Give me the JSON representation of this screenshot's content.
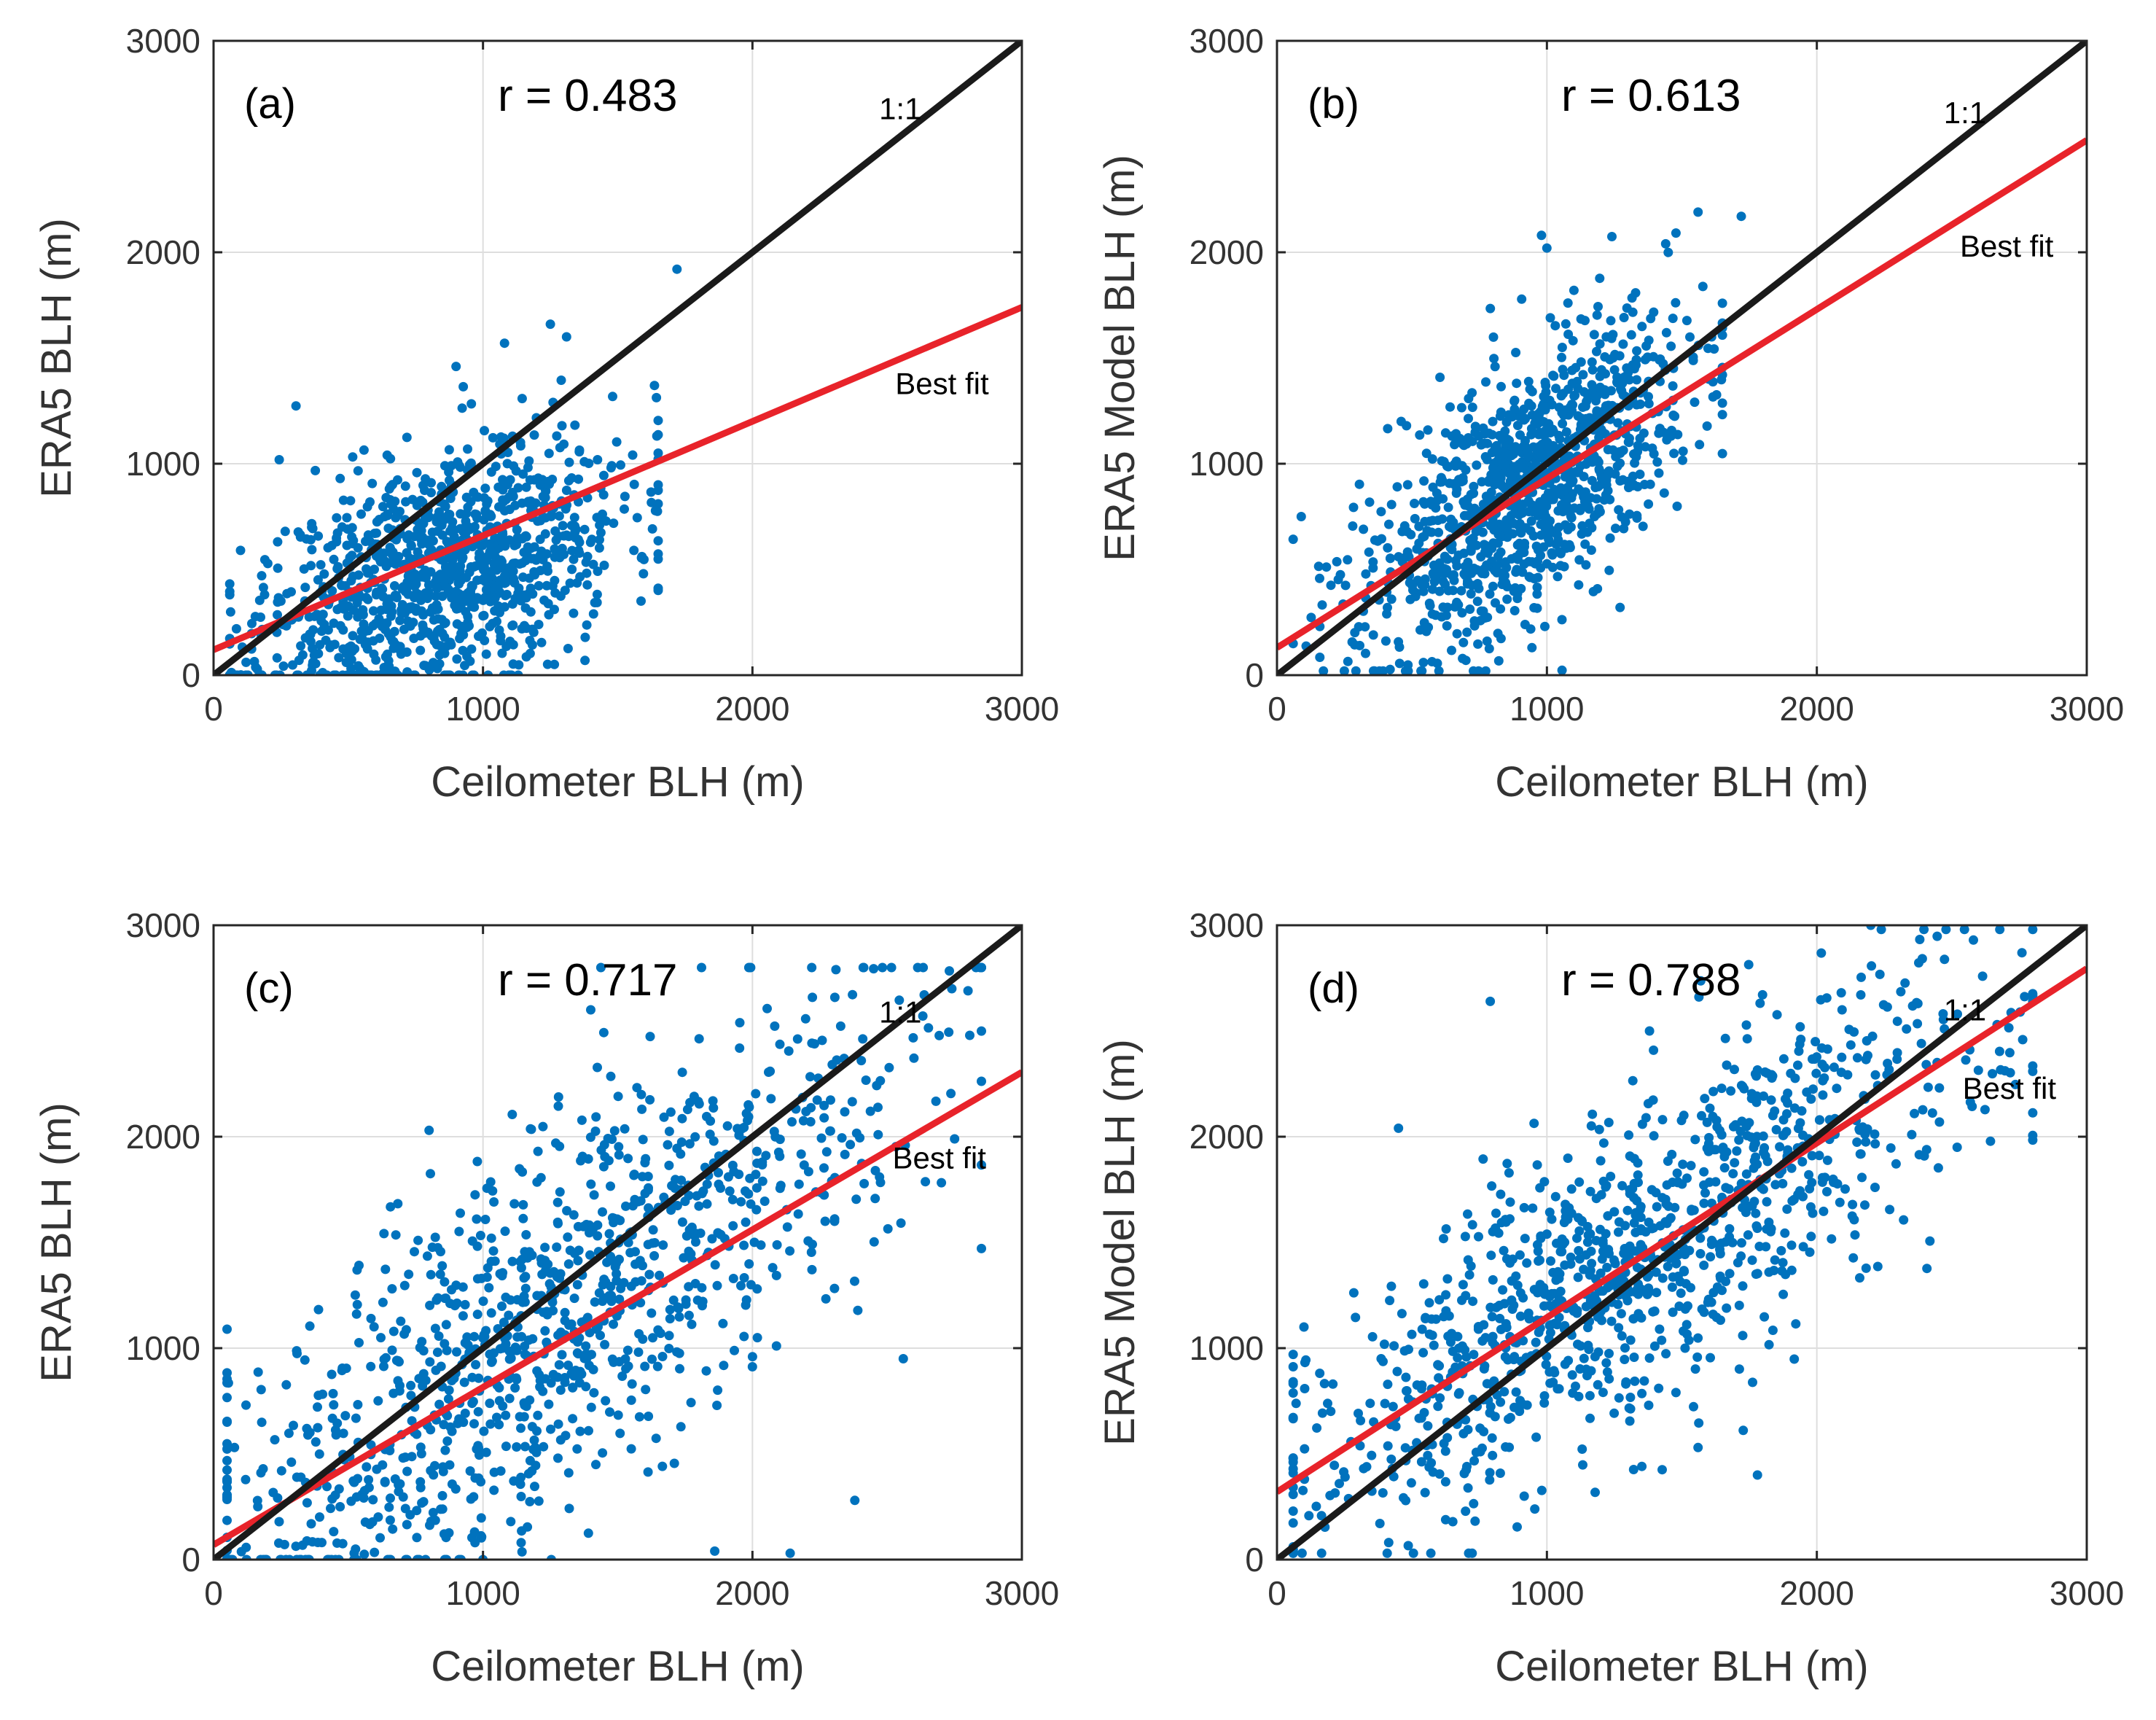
{
  "chart_data": [
    {
      "type": "scatter",
      "panel_label": "(a)",
      "r_text": "r = 0.483",
      "xlabel": "Ceilometer BLH (m)",
      "ylabel": "ERA5 BLH (m)",
      "xlim": [
        0,
        3000
      ],
      "ylim": [
        0,
        3000
      ],
      "xticks": [
        0,
        1000,
        2000,
        3000
      ],
      "yticks": [
        0,
        1000,
        2000,
        3000
      ],
      "x_tick_labels": [
        "0",
        "1000",
        "2000",
        "3000"
      ],
      "y_tick_labels": [
        "0",
        "1000",
        "2000",
        "3000"
      ],
      "grid": true,
      "one_to_one_label": "1:1",
      "best_fit_label": "Best fit",
      "best_fit": {
        "intercept": 120,
        "slope": 0.54
      },
      "point_cloud": {
        "count": 1100,
        "seed": 11,
        "x_mean": 850,
        "x_sd": 340,
        "x_min": 60,
        "x_max": 1650,
        "intercept": 130,
        "slope": 0.43,
        "noise_sd": 270,
        "y_min": 0,
        "y_max": 1700
      },
      "series": [
        {
          "name": "1:1",
          "color": "#1a1a1a",
          "line": [
            [
              0,
              0
            ],
            [
              3000,
              3000
            ]
          ]
        },
        {
          "name": "Best fit",
          "color": "#e8232a",
          "line": [
            [
              0,
              120
            ],
            [
              3000,
              1740
            ]
          ]
        },
        {
          "name": "Observations",
          "color": "#0072bd",
          "points": [
            [
              1720,
              1920
            ],
            [
              1650,
              1050
            ],
            [
              1560,
              590
            ],
            [
              1310,
              1600
            ],
            [
              1250,
              1660
            ],
            [
              1080,
              1570
            ],
            [
              900,
              1460
            ],
            [
              470,
              930
            ],
            [
              100,
              590
            ],
            [
              1260,
              1290
            ]
          ]
        }
      ]
    },
    {
      "type": "scatter",
      "panel_label": "(b)",
      "r_text": "r = 0.613",
      "xlabel": "Ceilometer BLH (m)",
      "ylabel": "ERA5 Model BLH (m)",
      "xlim": [
        0,
        3000
      ],
      "ylim": [
        0,
        3000
      ],
      "xticks": [
        0,
        1000,
        2000,
        3000
      ],
      "yticks": [
        0,
        1000,
        2000,
        3000
      ],
      "x_tick_labels": [
        "0",
        "1000",
        "2000",
        "3000"
      ],
      "y_tick_labels": [
        "0",
        "1000",
        "2000",
        "3000"
      ],
      "grid": true,
      "one_to_one_label": "1:1",
      "best_fit_label": "Best fit",
      "best_fit": {
        "intercept": 130,
        "slope": 0.8
      },
      "point_cloud": {
        "count": 1100,
        "seed": 23,
        "x_mean": 920,
        "x_sd": 300,
        "x_min": 60,
        "x_max": 1650,
        "intercept": 130,
        "slope": 0.8,
        "noise_sd": 300,
        "y_min": 20,
        "y_max": 2100
      },
      "series": [
        {
          "name": "1:1",
          "color": "#1a1a1a",
          "line": [
            [
              0,
              0
            ],
            [
              3000,
              3000
            ]
          ]
        },
        {
          "name": "Best fit",
          "color": "#e8232a",
          "line": [
            [
              0,
              130
            ],
            [
              3000,
              2530
            ]
          ]
        },
        {
          "name": "Observations",
          "color": "#0072bd",
          "points": [
            [
              1560,
              2190
            ],
            [
              1720,
              2170
            ],
            [
              1440,
              2040
            ],
            [
              980,
              2080
            ],
            [
              1000,
              2020
            ],
            [
              1220,
              1600
            ],
            [
              1600,
              1400
            ],
            [
              460,
              1200
            ],
            [
              90,
              750
            ],
            [
              1100,
              1820
            ]
          ]
        }
      ]
    },
    {
      "type": "scatter",
      "panel_label": "(c)",
      "r_text": "r = 0.717",
      "xlabel": "Ceilometer BLH (m)",
      "ylabel": "ERA5 BLH (m)",
      "xlim": [
        0,
        3000
      ],
      "ylim": [
        0,
        3000
      ],
      "xticks": [
        0,
        1000,
        2000,
        3000
      ],
      "yticks": [
        0,
        1000,
        2000,
        3000
      ],
      "x_tick_labels": [
        "0",
        "1000",
        "2000",
        "3000"
      ],
      "y_tick_labels": [
        "0",
        "1000",
        "2000",
        "3000"
      ],
      "grid": true,
      "one_to_one_label": "1:1",
      "best_fit_label": "Best fit",
      "best_fit": {
        "intercept": 70,
        "slope": 0.745
      },
      "point_cloud": {
        "count": 1100,
        "seed": 37,
        "x_mean": 1250,
        "x_sd": 650,
        "x_min": 50,
        "x_max": 2850,
        "intercept": 70,
        "slope": 0.85,
        "noise_sd": 450,
        "y_min": 0,
        "y_max": 2800
      },
      "series": [
        {
          "name": "1:1",
          "color": "#1a1a1a",
          "line": [
            [
              0,
              0
            ],
            [
              3000,
              3000
            ]
          ]
        },
        {
          "name": "Best fit",
          "color": "#e8232a",
          "line": [
            [
              0,
              70
            ],
            [
              3000,
              2305
            ]
          ]
        },
        {
          "name": "Observations",
          "color": "#0072bd",
          "points": [
            [
              2220,
              2800
            ],
            [
              2310,
              2790
            ],
            [
              2800,
              2690
            ],
            [
              2740,
              2700
            ],
            [
              1400,
              2600
            ],
            [
              800,
              2030
            ],
            [
              2560,
              950
            ],
            [
              2380,
              280
            ],
            [
              2140,
              30
            ],
            [
              1860,
              40
            ]
          ]
        }
      ]
    },
    {
      "type": "scatter",
      "panel_label": "(d)",
      "r_text": "r = 0.788",
      "xlabel": "Ceilometer BLH (m)",
      "ylabel": "ERA5 Model BLH (m)",
      "xlim": [
        0,
        3000
      ],
      "ylim": [
        0,
        3000
      ],
      "xticks": [
        0,
        1000,
        2000,
        3000
      ],
      "yticks": [
        0,
        1000,
        2000,
        3000
      ],
      "x_tick_labels": [
        "0",
        "1000",
        "2000",
        "3000"
      ],
      "y_tick_labels": [
        "0",
        "1000",
        "2000",
        "3000"
      ],
      "grid": true,
      "one_to_one_label": "1:1",
      "best_fit_label": "Best fit",
      "best_fit": {
        "intercept": 320,
        "slope": 0.825
      },
      "point_cloud": {
        "count": 1100,
        "seed": 53,
        "x_mean": 1350,
        "x_sd": 650,
        "x_min": 60,
        "x_max": 2800,
        "intercept": 320,
        "slope": 0.83,
        "noise_sd": 380,
        "y_min": 30,
        "y_max": 2980
      },
      "series": [
        {
          "name": "1:1",
          "color": "#1a1a1a",
          "line": [
            [
              0,
              0
            ],
            [
              3000,
              3000
            ]
          ]
        },
        {
          "name": "Best fit",
          "color": "#e8232a",
          "line": [
            [
              0,
              320
            ],
            [
              3000,
              2795
            ]
          ]
        },
        {
          "name": "Observations",
          "color": "#0072bd",
          "points": [
            [
              2200,
              3000
            ],
            [
              2580,
              2930
            ],
            [
              2760,
              2870
            ],
            [
              790,
              2640
            ],
            [
              450,
              2040
            ],
            [
              100,
              1100
            ],
            [
              1780,
              400
            ],
            [
              2520,
              1950
            ],
            [
              1560,
              530
            ],
            [
              1380,
              2500
            ]
          ]
        }
      ]
    }
  ]
}
